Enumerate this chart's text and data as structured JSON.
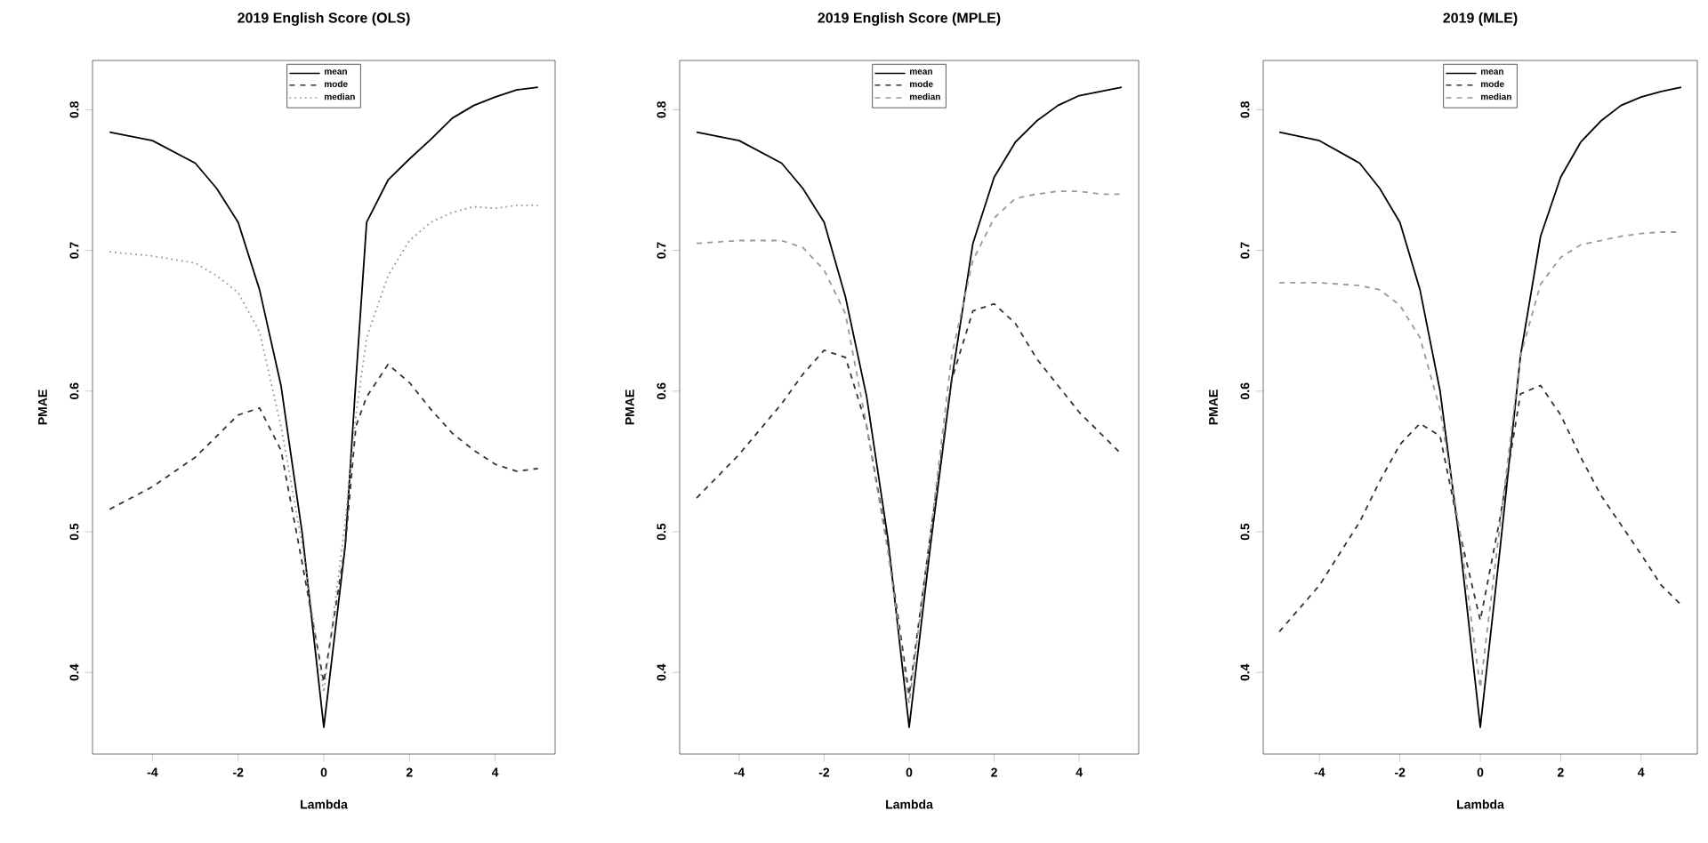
{
  "chart_data": [
    {
      "type": "line",
      "title": "2019 English Score (OLS)",
      "xlabel": "Lambda",
      "ylabel": "PMAE",
      "legend": "top",
      "x": [
        -5,
        -4,
        -3,
        -2.5,
        -2,
        -1.5,
        -1,
        -0.5,
        0,
        0.5,
        0.75,
        1,
        1.5,
        2,
        2.5,
        3,
        3.5,
        4,
        4.5,
        5
      ],
      "xlim": [
        -5.4,
        5.4
      ],
      "xticks": [
        -4,
        -2,
        0,
        2,
        4
      ],
      "ylim": [
        0.342,
        0.835
      ],
      "yticks": [
        0.4,
        0.5,
        0.6,
        0.7,
        0.8
      ],
      "series": [
        {
          "name": "mean",
          "color": "#000000",
          "line_style": "solid",
          "values": [
            0.784,
            0.778,
            0.762,
            0.744,
            0.72,
            0.672,
            0.604,
            0.498,
            0.361,
            0.49,
            0.608,
            0.72,
            0.75,
            0.765,
            0.779,
            0.794,
            0.803,
            0.809,
            0.814,
            0.816
          ]
        },
        {
          "name": "mode",
          "color": "#333333",
          "line_style": "dashed",
          "values": [
            0.516,
            0.532,
            0.553,
            0.568,
            0.583,
            0.588,
            0.558,
            0.477,
            0.393,
            0.49,
            0.575,
            0.596,
            0.619,
            0.606,
            0.587,
            0.57,
            0.558,
            0.548,
            0.543,
            0.545
          ]
        },
        {
          "name": "median",
          "color": "#999999",
          "line_style": "dotted",
          "values": [
            0.699,
            0.696,
            0.691,
            0.682,
            0.67,
            0.642,
            0.575,
            0.49,
            0.386,
            0.507,
            0.583,
            0.638,
            0.682,
            0.707,
            0.72,
            0.727,
            0.731,
            0.73,
            0.732,
            0.732
          ]
        }
      ]
    },
    {
      "type": "line",
      "title": "2019 English Score (MPLE)",
      "xlabel": "Lambda",
      "ylabel": "PMAE",
      "legend": "top",
      "x": [
        -5,
        -4,
        -3,
        -2.5,
        -2,
        -1.5,
        -1,
        -0.5,
        0,
        0.5,
        1,
        1.5,
        2,
        2.5,
        3,
        3.5,
        4,
        4.5,
        5
      ],
      "xlim": [
        -5.4,
        5.4
      ],
      "xticks": [
        -4,
        -2,
        0,
        2,
        4
      ],
      "ylim": [
        0.342,
        0.835
      ],
      "yticks": [
        0.4,
        0.5,
        0.6,
        0.7,
        0.8
      ],
      "series": [
        {
          "name": "mean",
          "color": "#000000",
          "line_style": "solid",
          "values": [
            0.784,
            0.778,
            0.762,
            0.744,
            0.72,
            0.667,
            0.596,
            0.495,
            0.361,
            0.49,
            0.608,
            0.705,
            0.752,
            0.777,
            0.792,
            0.803,
            0.81,
            0.813,
            0.816
          ]
        },
        {
          "name": "mode",
          "color": "#333333",
          "line_style": "dashed",
          "values": [
            0.524,
            0.555,
            0.591,
            0.612,
            0.629,
            0.624,
            0.575,
            0.49,
            0.384,
            0.498,
            0.608,
            0.657,
            0.662,
            0.648,
            0.623,
            0.604,
            0.585,
            0.57,
            0.555
          ]
        },
        {
          "name": "median",
          "color": "#999999",
          "line_style": "dashed",
          "values": [
            0.705,
            0.707,
            0.707,
            0.702,
            0.686,
            0.655,
            0.575,
            0.486,
            0.378,
            0.498,
            0.625,
            0.693,
            0.723,
            0.737,
            0.74,
            0.742,
            0.742,
            0.74,
            0.74
          ]
        }
      ]
    },
    {
      "type": "line",
      "title": "2019 (MLE)",
      "xlabel": "Lambda",
      "ylabel": "PMAE",
      "legend": "top",
      "x": [
        -5,
        -4,
        -3,
        -2.5,
        -2,
        -1.5,
        -1,
        -0.5,
        0,
        0.5,
        1,
        1.5,
        2,
        2.5,
        3,
        3.5,
        4,
        4.5,
        5
      ],
      "xlim": [
        -5.4,
        5.4
      ],
      "xticks": [
        -4,
        -2,
        0,
        2,
        4
      ],
      "ylim": [
        0.342,
        0.835
      ],
      "yticks": [
        0.4,
        0.5,
        0.6,
        0.7,
        0.8
      ],
      "series": [
        {
          "name": "mean",
          "color": "#000000",
          "line_style": "solid",
          "values": [
            0.784,
            0.778,
            0.762,
            0.744,
            0.72,
            0.672,
            0.6,
            0.49,
            0.361,
            0.49,
            0.625,
            0.71,
            0.752,
            0.777,
            0.792,
            0.803,
            0.809,
            0.813,
            0.816
          ]
        },
        {
          "name": "mode",
          "color": "#333333",
          "line_style": "dashed",
          "values": [
            0.429,
            0.462,
            0.507,
            0.536,
            0.562,
            0.577,
            0.568,
            0.498,
            0.437,
            0.511,
            0.598,
            0.604,
            0.583,
            0.553,
            0.526,
            0.505,
            0.484,
            0.462,
            0.448
          ]
        },
        {
          "name": "median",
          "color": "#999999",
          "line_style": "dashed",
          "values": [
            0.677,
            0.677,
            0.675,
            0.672,
            0.661,
            0.638,
            0.587,
            0.498,
            0.389,
            0.507,
            0.625,
            0.676,
            0.695,
            0.704,
            0.707,
            0.71,
            0.712,
            0.713,
            0.713
          ]
        }
      ]
    }
  ]
}
